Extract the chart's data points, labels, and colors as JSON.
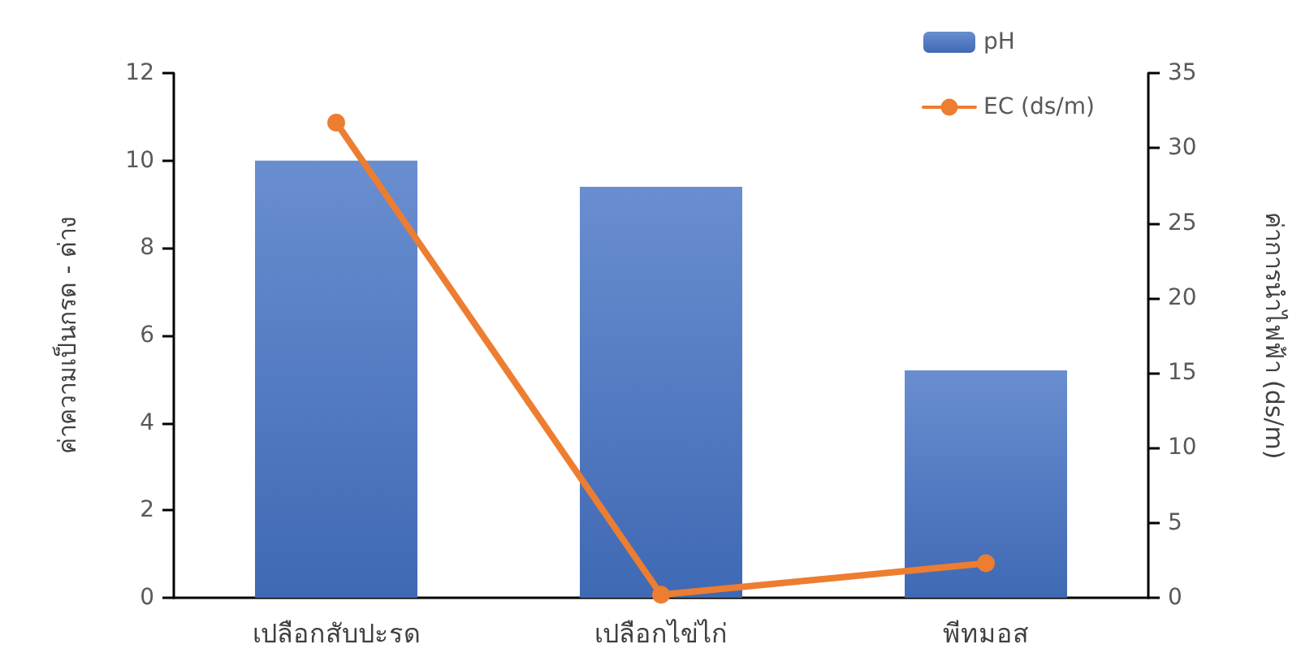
{
  "chart_data": {
    "type": "bar",
    "categories": [
      "เปลือกสับปะรด",
      "เปลือกไข่ไก่",
      "พีทมอส"
    ],
    "ylabel": "ค่าความเป็นกรด - ด่าง",
    "y2label": "ค่าการนำไฟฟ้า (ds/m)",
    "series": [
      {
        "name": "pH",
        "color": "#4472c4",
        "values": [
          10.0,
          9.4,
          5.2
        ]
      },
      {
        "name": "EC (ds/m)",
        "type": "line",
        "axis": "y2",
        "color": "#ed7d31",
        "values": [
          31.7,
          0.2,
          2.3
        ]
      }
    ],
    "ylim": [
      0,
      12
    ],
    "yticks": [
      0,
      2,
      4,
      6,
      8,
      10,
      12
    ],
    "y2lim": [
      0,
      35
    ],
    "y2ticks": [
      0,
      5,
      10,
      15,
      20,
      25,
      30,
      35
    ],
    "grid": false,
    "legend": "top right",
    "marker": "circle"
  }
}
